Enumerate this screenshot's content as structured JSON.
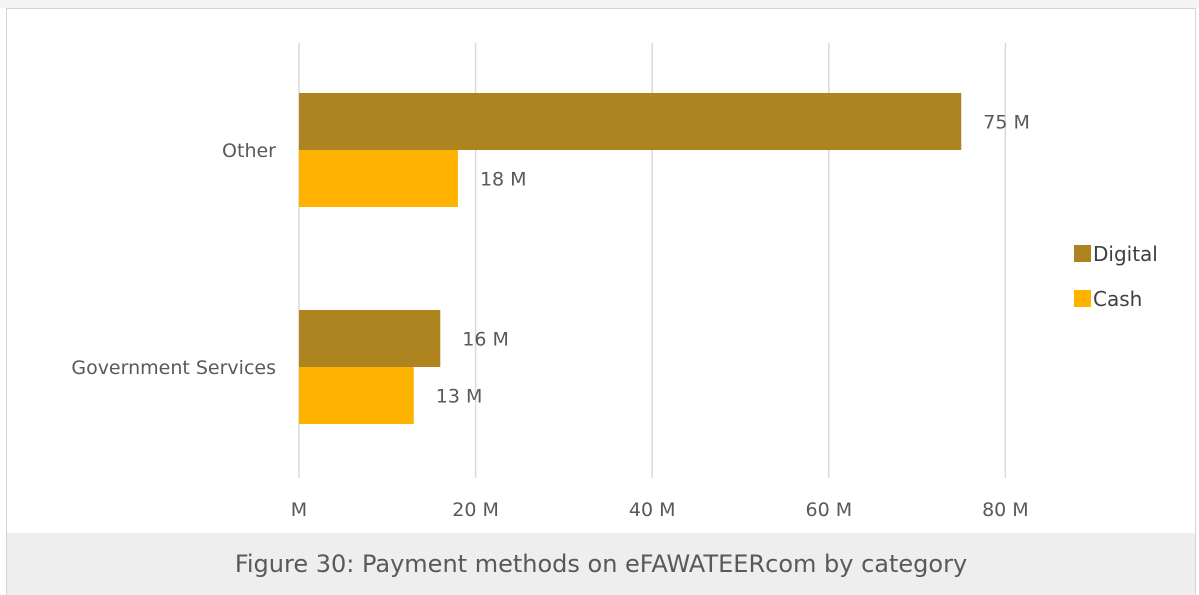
{
  "caption": "Figure 30: Payment methods on eFAWATEERcom by category",
  "chart_data": {
    "type": "bar",
    "orientation": "horizontal",
    "title": "",
    "xlabel": "",
    "ylabel": "",
    "categories": [
      "Other",
      "Government Services"
    ],
    "series": [
      {
        "name": "Digital",
        "color": "#AD8420",
        "values": [
          75,
          16
        ],
        "labels": [
          "75 M",
          "16 M"
        ]
      },
      {
        "name": "Cash",
        "color": "#FFB300",
        "values": [
          18,
          13
        ],
        "labels": [
          "18 M",
          "13 M"
        ]
      }
    ],
    "xlim": [
      0,
      90
    ],
    "x_ticks": [
      0,
      20,
      40,
      60,
      80
    ],
    "x_tick_labels": [
      "M",
      "20 M",
      "40 M",
      "60 M",
      "80 M"
    ],
    "grid": "vertical",
    "legend": "right"
  }
}
